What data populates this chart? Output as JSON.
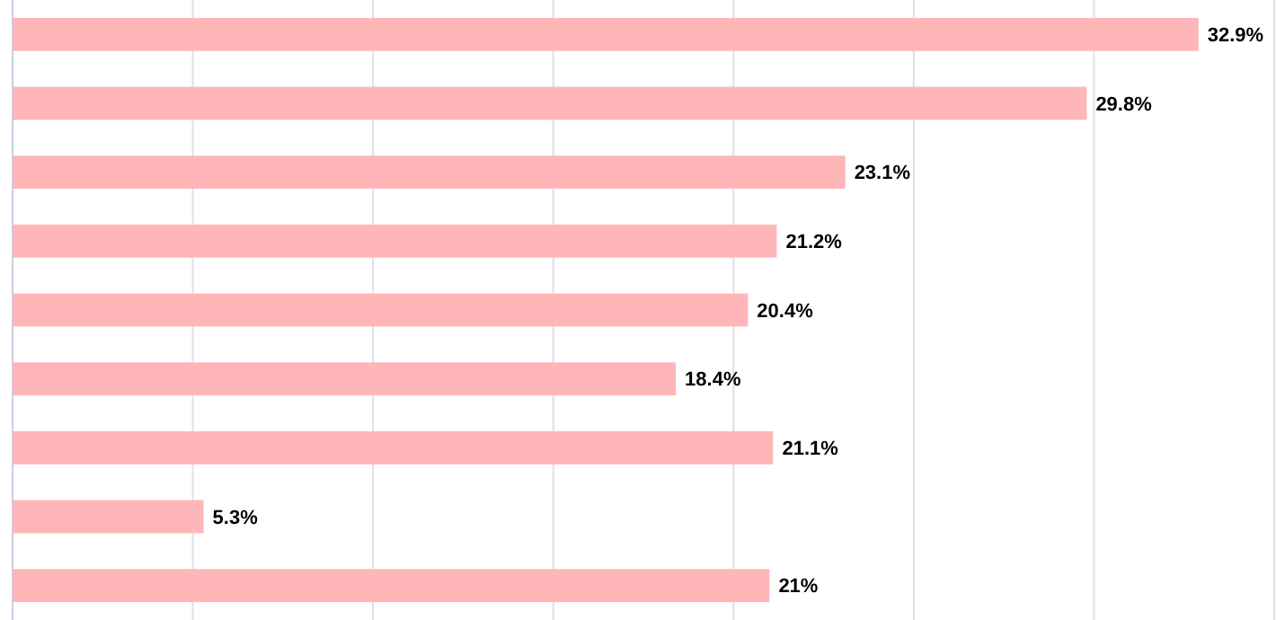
{
  "chart_data": {
    "type": "bar",
    "orientation": "horizontal",
    "categories": [
      null,
      null,
      null,
      null,
      null,
      null,
      null,
      null,
      null
    ],
    "values": [
      32.9,
      29.8,
      23.1,
      21.2,
      20.4,
      18.4,
      21.1,
      5.3,
      21
    ],
    "value_labels": [
      "32.9%",
      "29.8%",
      "23.1%",
      "21.2%",
      "20.4%",
      "18.4%",
      "21.1%",
      "5.3%",
      "21%"
    ],
    "color": "#ffb6b9",
    "xlim": [
      0,
      35
    ],
    "xticks": [
      {
        "value": 0,
        "label": null
      },
      {
        "value": 5,
        "label": null
      },
      {
        "value": 10,
        "label": null
      },
      {
        "value": 15,
        "label": null
      },
      {
        "value": 20,
        "label": null
      },
      {
        "value": 25,
        "label": null
      },
      {
        "value": 30,
        "label": null
      },
      {
        "value": 35,
        "label": null
      }
    ],
    "grid": "x"
  }
}
